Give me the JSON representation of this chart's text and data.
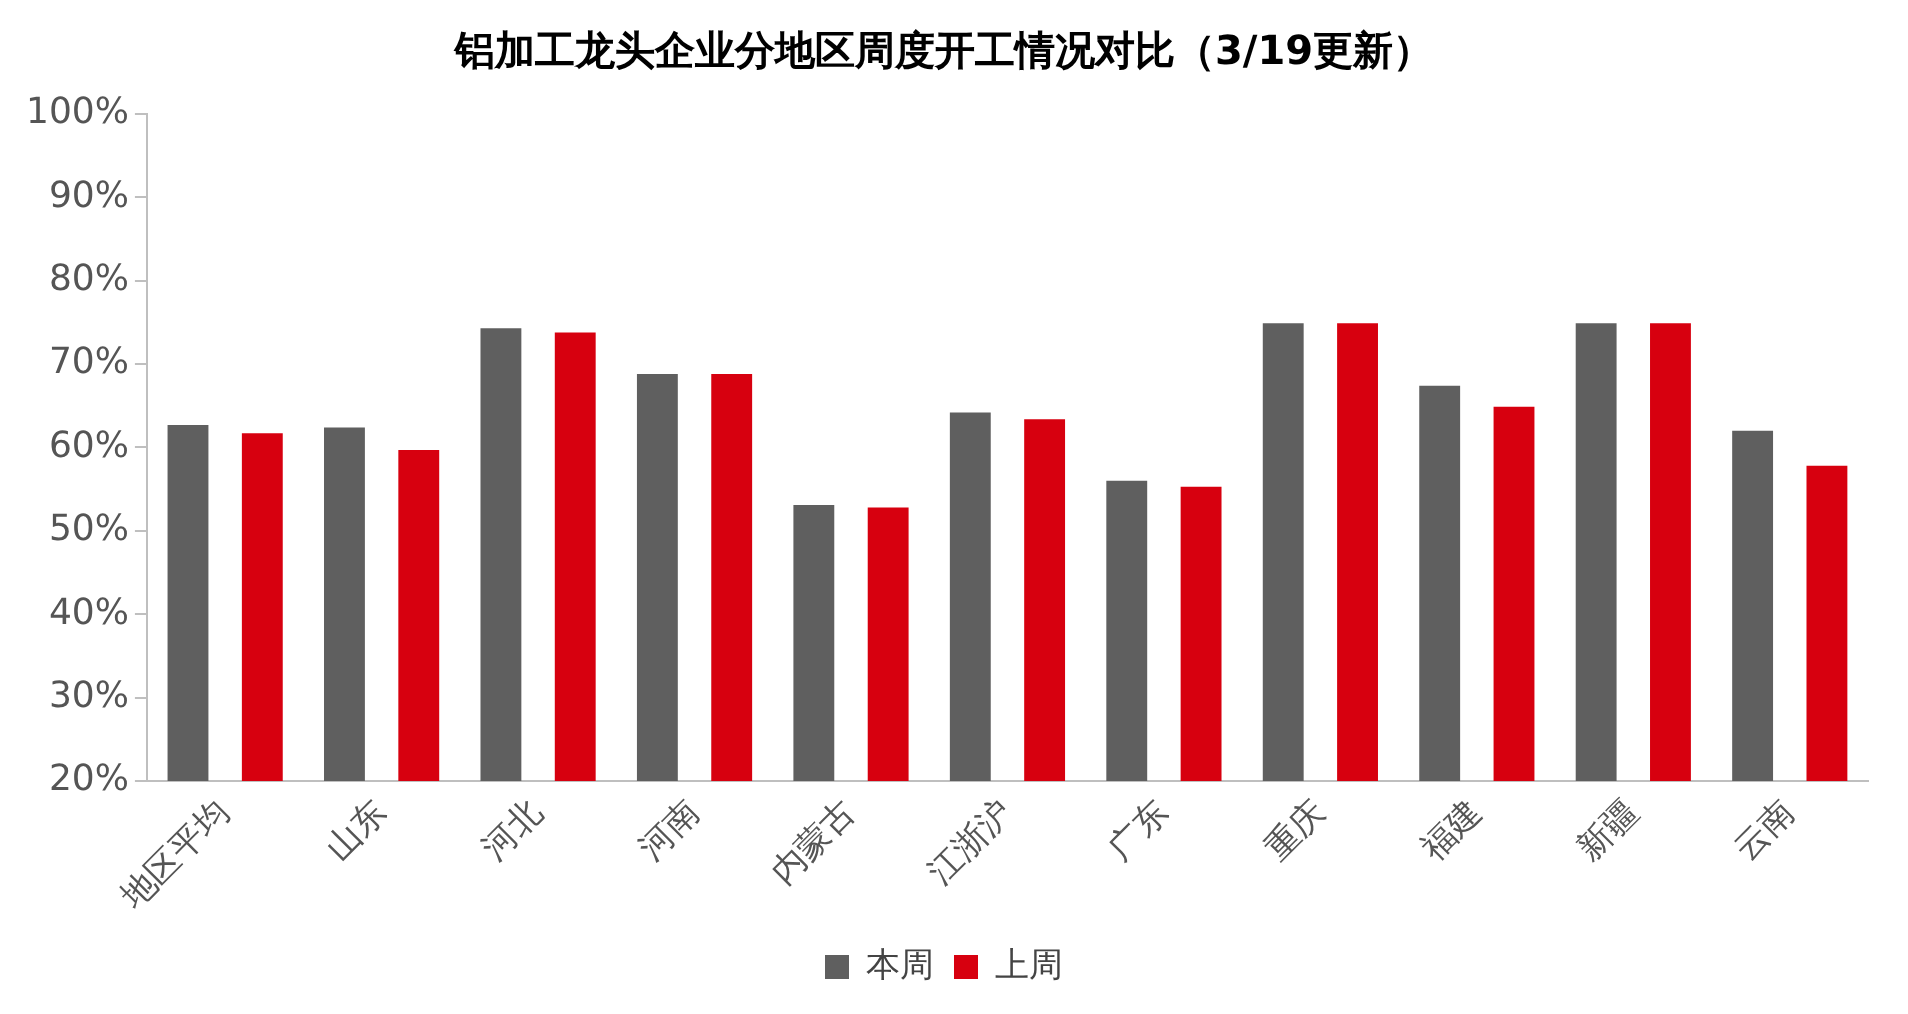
{
  "chart_data": {
    "type": "bar",
    "title": "铝加工龙头企业分地区周度开工情况对比（3/19更新）",
    "categories": [
      "地区平均",
      "山东",
      "河北",
      "河南",
      "内蒙古",
      "江浙沪",
      "广东",
      "重庆",
      "福建",
      "新疆",
      "云南"
    ],
    "series": [
      {
        "name": "本周",
        "color": "#5f5f5f",
        "values": [
          62.7,
          62.4,
          74.3,
          68.8,
          53.1,
          64.2,
          56.0,
          74.9,
          67.4,
          74.9,
          62.0
        ]
      },
      {
        "name": "上周",
        "color": "#d7000f",
        "values": [
          61.7,
          59.7,
          73.8,
          68.8,
          52.8,
          63.4,
          55.3,
          74.9,
          64.9,
          74.9,
          57.8
        ]
      }
    ],
    "ylim": [
      20,
      100
    ],
    "yticks": [
      {
        "value": 20,
        "label": "20%"
      },
      {
        "value": 30,
        "label": "30%"
      },
      {
        "value": 40,
        "label": "40%"
      },
      {
        "value": 50,
        "label": "50%"
      },
      {
        "value": 60,
        "label": "60%"
      },
      {
        "value": 70,
        "label": "70%"
      },
      {
        "value": 80,
        "label": "80%"
      },
      {
        "value": 90,
        "label": "90%"
      },
      {
        "value": 100,
        "label": "100%"
      }
    ],
    "grid": false,
    "legend": "bottom"
  }
}
